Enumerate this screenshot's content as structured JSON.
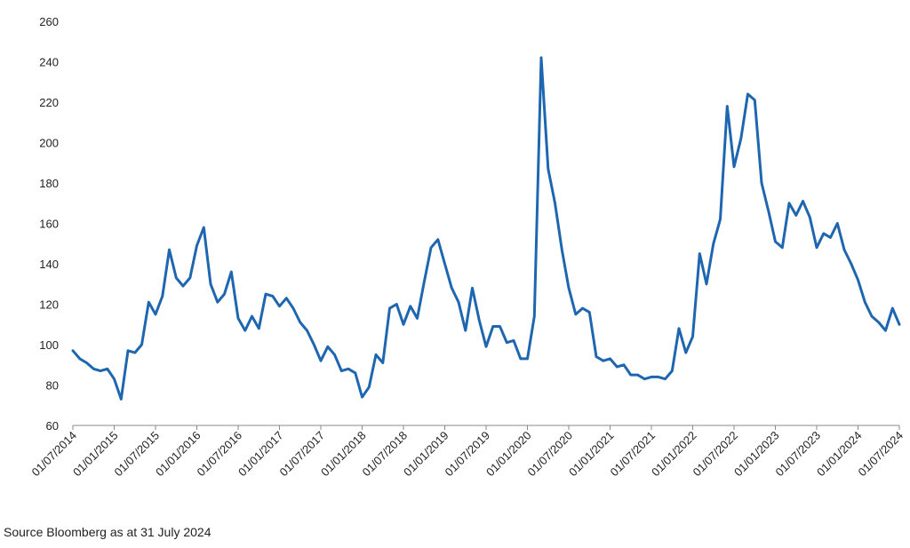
{
  "source_note": "Source Bloomberg as at 31 July 2024",
  "chart_data": {
    "type": "line",
    "title": "",
    "xlabel": "",
    "ylabel": "",
    "ylim": [
      60,
      260
    ],
    "y_ticks": [
      60,
      80,
      100,
      120,
      140,
      160,
      180,
      200,
      220,
      240,
      260
    ],
    "x_tick_labels": [
      "01/07/2014",
      "01/01/2015",
      "01/07/2015",
      "01/01/2016",
      "01/07/2016",
      "01/01/2017",
      "01/07/2017",
      "01/01/2018",
      "01/07/2018",
      "01/01/2019",
      "01/07/2019",
      "01/01/2020",
      "01/07/2020",
      "01/01/2021",
      "01/07/2021",
      "01/01/2022",
      "01/07/2022",
      "01/01/2023",
      "01/07/2023",
      "01/01/2024",
      "01/07/2024"
    ],
    "grid": false,
    "legend": "none",
    "line_color": "#1f66b0",
    "x": [
      "2014-07",
      "2014-08",
      "2014-09",
      "2014-10",
      "2014-11",
      "2014-12",
      "2015-01",
      "2015-02",
      "2015-03",
      "2015-04",
      "2015-05",
      "2015-06",
      "2015-07",
      "2015-08",
      "2015-09",
      "2015-10",
      "2015-11",
      "2015-12",
      "2016-01",
      "2016-02",
      "2016-03",
      "2016-04",
      "2016-05",
      "2016-06",
      "2016-07",
      "2016-08",
      "2016-09",
      "2016-10",
      "2016-11",
      "2016-12",
      "2017-01",
      "2017-02",
      "2017-03",
      "2017-04",
      "2017-05",
      "2017-06",
      "2017-07",
      "2017-08",
      "2017-09",
      "2017-10",
      "2017-11",
      "2017-12",
      "2018-01",
      "2018-02",
      "2018-03",
      "2018-04",
      "2018-05",
      "2018-06",
      "2018-07",
      "2018-08",
      "2018-09",
      "2018-10",
      "2018-11",
      "2018-12",
      "2019-01",
      "2019-02",
      "2019-03",
      "2019-04",
      "2019-05",
      "2019-06",
      "2019-07",
      "2019-08",
      "2019-09",
      "2019-10",
      "2019-11",
      "2019-12",
      "2020-01",
      "2020-02",
      "2020-03",
      "2020-04",
      "2020-05",
      "2020-06",
      "2020-07",
      "2020-08",
      "2020-09",
      "2020-10",
      "2020-11",
      "2020-12",
      "2021-01",
      "2021-02",
      "2021-03",
      "2021-04",
      "2021-05",
      "2021-06",
      "2021-07",
      "2021-08",
      "2021-09",
      "2021-10",
      "2021-11",
      "2021-12",
      "2022-01",
      "2022-02",
      "2022-03",
      "2022-04",
      "2022-05",
      "2022-06",
      "2022-07",
      "2022-08",
      "2022-09",
      "2022-10",
      "2022-11",
      "2022-12",
      "2023-01",
      "2023-02",
      "2023-03",
      "2023-04",
      "2023-05",
      "2023-06",
      "2023-07",
      "2023-08",
      "2023-09",
      "2023-10",
      "2023-11",
      "2023-12",
      "2024-01",
      "2024-02",
      "2024-03",
      "2024-04",
      "2024-05",
      "2024-06",
      "2024-07"
    ],
    "series": [
      {
        "name": "",
        "values": [
          97,
          93,
          91,
          88,
          87,
          88,
          83,
          73,
          97,
          96,
          100,
          121,
          115,
          124,
          147,
          133,
          129,
          133,
          149,
          158,
          130,
          121,
          125,
          136,
          113,
          107,
          114,
          108,
          125,
          124,
          119,
          123,
          118,
          111,
          107,
          100,
          92,
          99,
          95,
          87,
          88,
          86,
          74,
          79,
          95,
          91,
          118,
          120,
          110,
          119,
          113,
          131,
          148,
          152,
          140,
          128,
          121,
          107,
          128,
          112,
          99,
          109,
          109,
          101,
          102,
          93,
          93,
          114,
          242,
          187,
          170,
          147,
          128,
          115,
          118,
          116,
          94,
          92,
          93,
          89,
          90,
          85,
          85,
          83,
          84,
          84,
          83,
          87,
          108,
          96,
          104,
          145,
          130,
          150,
          162,
          218,
          188,
          202,
          224,
          221,
          180,
          166,
          151,
          148,
          170,
          164,
          171,
          163,
          148,
          155,
          153,
          160,
          147,
          140,
          132,
          121,
          114,
          111,
          107,
          118,
          110
        ]
      }
    ]
  }
}
